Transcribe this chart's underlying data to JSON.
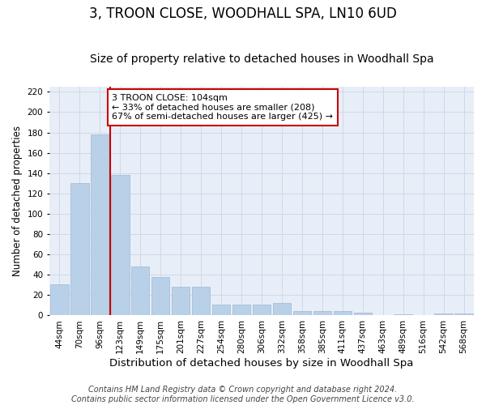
{
  "title": "3, TROON CLOSE, WOODHALL SPA, LN10 6UD",
  "subtitle": "Size of property relative to detached houses in Woodhall Spa",
  "xlabel": "Distribution of detached houses by size in Woodhall Spa",
  "ylabel": "Number of detached properties",
  "categories": [
    "44sqm",
    "70sqm",
    "96sqm",
    "123sqm",
    "149sqm",
    "175sqm",
    "201sqm",
    "227sqm",
    "254sqm",
    "280sqm",
    "306sqm",
    "332sqm",
    "358sqm",
    "385sqm",
    "411sqm",
    "437sqm",
    "463sqm",
    "489sqm",
    "516sqm",
    "542sqm",
    "568sqm"
  ],
  "values": [
    31,
    130,
    178,
    138,
    48,
    38,
    28,
    28,
    11,
    11,
    11,
    12,
    4,
    4,
    4,
    3,
    0,
    1,
    0,
    2,
    2
  ],
  "bar_color": "#b8d0e8",
  "bar_edge_color": "#a0b8d0",
  "grid_color": "#d0d8e8",
  "background_color": "#e8eef8",
  "vline_x_idx": 2,
  "vline_color": "#cc0000",
  "annotation_text": "3 TROON CLOSE: 104sqm\n← 33% of detached houses are smaller (208)\n67% of semi-detached houses are larger (425) →",
  "annotation_box_color": "#ffffff",
  "annotation_box_edge": "#cc0000",
  "ylim": [
    0,
    225
  ],
  "yticks": [
    0,
    20,
    40,
    60,
    80,
    100,
    120,
    140,
    160,
    180,
    200,
    220
  ],
  "footnote": "Contains HM Land Registry data © Crown copyright and database right 2024.\nContains public sector information licensed under the Open Government Licence v3.0.",
  "title_fontsize": 12,
  "subtitle_fontsize": 10,
  "xlabel_fontsize": 9.5,
  "ylabel_fontsize": 8.5,
  "tick_fontsize": 7.5,
  "footnote_fontsize": 7,
  "ann_fontsize": 8
}
